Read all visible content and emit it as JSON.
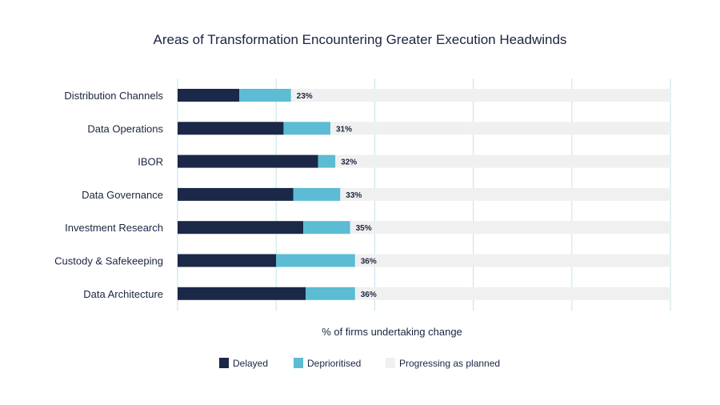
{
  "chart_data": {
    "type": "bar",
    "orientation": "horizontal",
    "stacked": true,
    "title": "Areas of Transformation Encountering Greater Execution Headwinds",
    "xlabel": "% of firms undertaking change",
    "ylabel": "",
    "xlim": [
      0,
      100
    ],
    "grid": true,
    "legend_position": "bottom",
    "categories": [
      "Distribution Channels",
      "Data Operations",
      "IBOR",
      "Data Governance",
      "Investment Research",
      "Custody & Safekeeping",
      "Data Architecture"
    ],
    "series": [
      {
        "name": "Delayed",
        "color": "#1b2848",
        "values": [
          12.5,
          21.5,
          28.5,
          23.5,
          25.5,
          20,
          26
        ]
      },
      {
        "name": "Deprioritised",
        "color": "#5bbcd3",
        "values": [
          10.5,
          9.5,
          3.5,
          9.5,
          9.5,
          16,
          10
        ]
      },
      {
        "name": "Progressing as planned",
        "color": "#f0f0f0",
        "values": [
          77,
          69,
          68,
          67,
          65,
          64,
          64
        ]
      }
    ],
    "data_labels": [
      "23%",
      "31%",
      "32%",
      "33%",
      "35%",
      "36%",
      "36%"
    ],
    "gridline_color": "#bfe3ea"
  }
}
